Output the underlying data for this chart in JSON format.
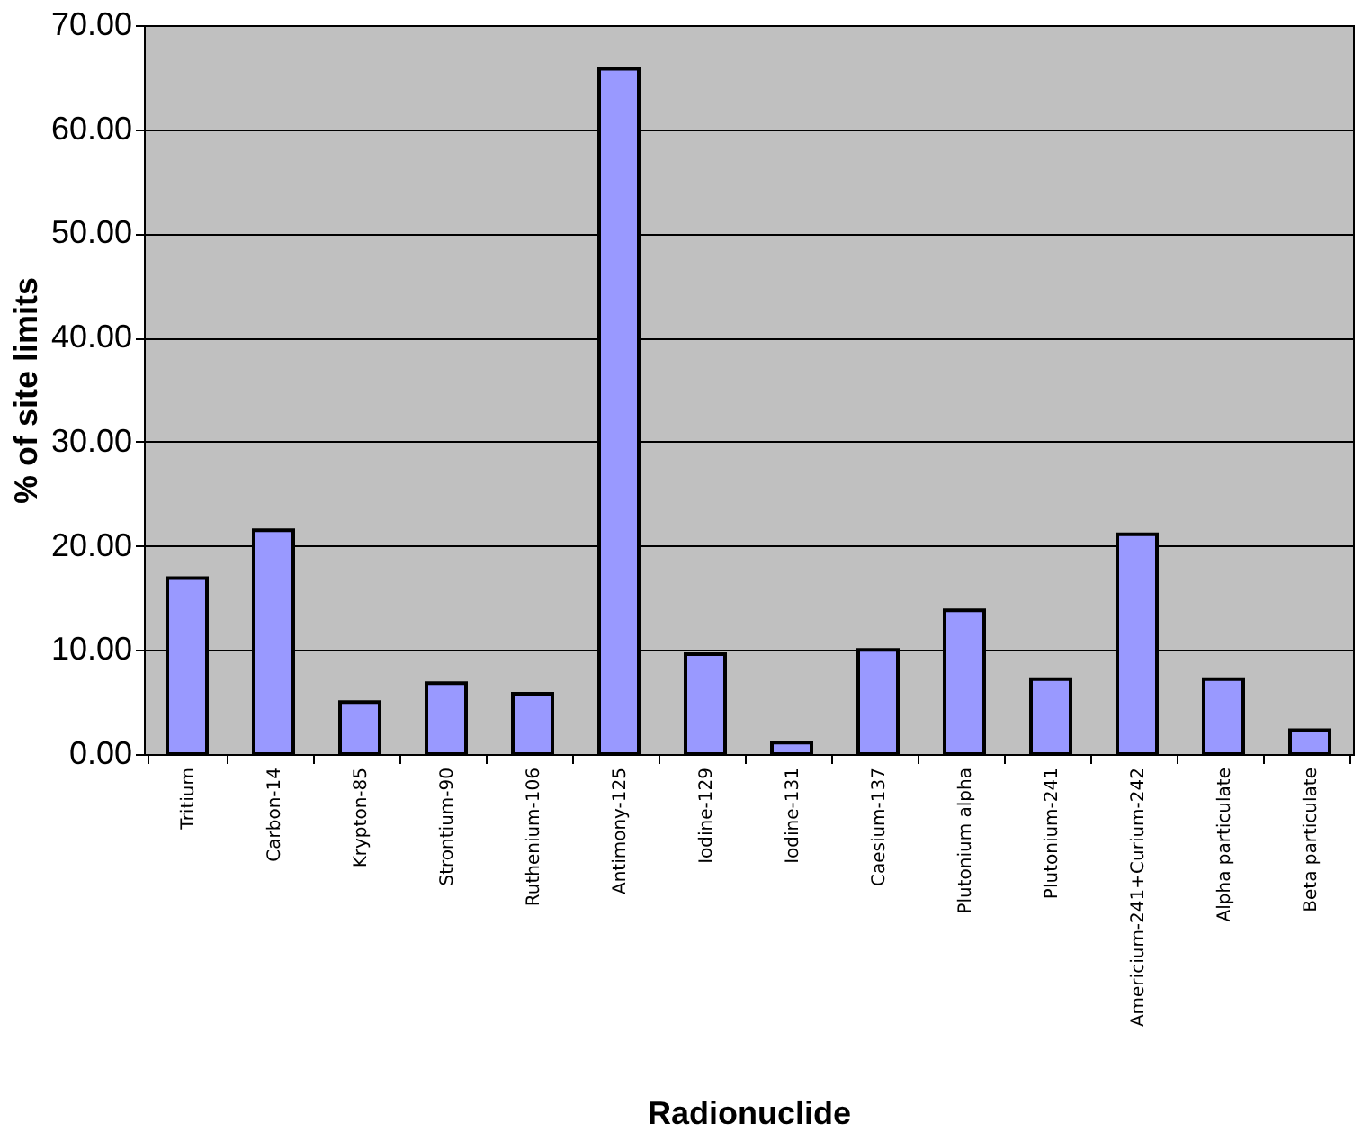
{
  "chart_data": {
    "type": "bar",
    "xlabel": "Radionuclide",
    "ylabel": "% of site limits",
    "categories": [
      "Tritium",
      "Carbon-14",
      "Krypton-85",
      "Strontium-90",
      "Ruthenium-106",
      "Antimony-125",
      "Iodine-129",
      "Iodine-131",
      "Caesium-137",
      "Plutonium alpha",
      "Plutonium-241",
      "Americium-241+Curium-242",
      "Alpha particulate",
      "Beta particulate"
    ],
    "values": [
      16.9,
      21.5,
      5.0,
      6.8,
      5.8,
      65.8,
      9.6,
      1.1,
      10.0,
      13.8,
      7.2,
      21.1,
      7.2,
      2.3
    ],
    "color": "#9999ff",
    "ylim": [
      0,
      70
    ],
    "yticks": [
      {
        "value": 0,
        "label": "0.00"
      },
      {
        "value": 10,
        "label": "10.00"
      },
      {
        "value": 20,
        "label": "20.00"
      },
      {
        "value": 30,
        "label": "30.00"
      },
      {
        "value": 40,
        "label": "40.00"
      },
      {
        "value": 50,
        "label": "50.00"
      },
      {
        "value": 60,
        "label": "60.00"
      },
      {
        "value": 70,
        "label": "70.00"
      }
    ],
    "grid": "y"
  }
}
